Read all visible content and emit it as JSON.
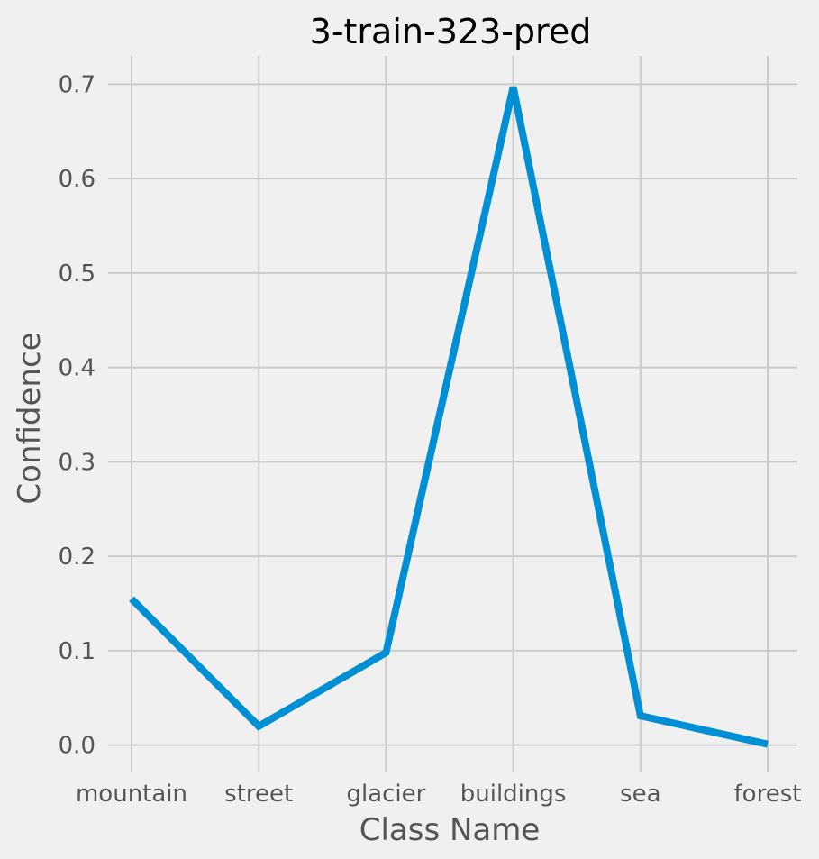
{
  "chart_data": {
    "type": "line",
    "title": "3-train-323-pred",
    "xlabel": "Class Name",
    "ylabel": "Confidence",
    "categories": [
      "mountain",
      "street",
      "glacier",
      "buildings",
      "sea",
      "forest"
    ],
    "series": [
      {
        "values": [
          0.155,
          0.02,
          0.098,
          0.697,
          0.031,
          0.001
        ],
        "color": "#008fd5"
      }
    ],
    "yticks": [
      "0.0",
      "0.1",
      "0.2",
      "0.3",
      "0.4",
      "0.5",
      "0.6",
      "0.7"
    ],
    "ylim": [
      -0.028,
      0.73
    ],
    "grid": true,
    "background": "#f0f0f0",
    "gridColor": "#cbcbcb"
  }
}
